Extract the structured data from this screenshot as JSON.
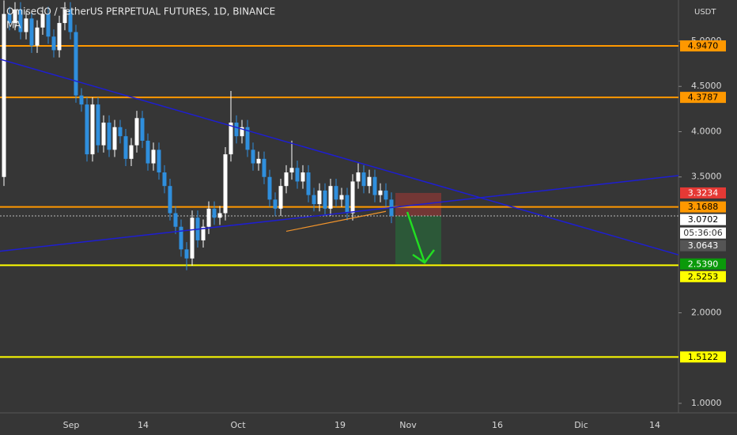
{
  "chart_data": {
    "type": "candlestick",
    "title": "OmiseGO / TetherUS PERPETUAL FUTURES, 1D, BINANCE",
    "unit": "USDT",
    "ylim": [
      0.895,
      5.454
    ],
    "yticks": [
      {
        "value": 1,
        "label": "1.0000"
      },
      {
        "value": 2,
        "label": "2.0000"
      },
      {
        "value": 3.5,
        "label": "3.5000"
      },
      {
        "value": 4,
        "label": "4.0000"
      },
      {
        "value": 4.5,
        "label": "4.5000"
      },
      {
        "value": 5,
        "label": "5.0000"
      }
    ],
    "xtick_labels": [
      "Sep",
      "14",
      "Oct",
      "19",
      "Nov",
      "16",
      "Dic",
      "14"
    ],
    "up_color": "#ffffff",
    "down_color": "#2f8fdd",
    "open": [
      3.5,
      5.3,
      5.2,
      5.35,
      5.1,
      5.25,
      4.95,
      5.15,
      5.3,
      5.05,
      4.9,
      5.2,
      5.35,
      5.1,
      4.4,
      4.3,
      3.75,
      4.3,
      3.85,
      4.1,
      3.8,
      4.05,
      3.95,
      3.7,
      3.85,
      4.15,
      3.9,
      3.65,
      3.8,
      3.55,
      3.4,
      3.1,
      2.95,
      2.7,
      2.6,
      3.05,
      2.8,
      2.95,
      3.15,
      3.05,
      3.1,
      3.75,
      4.1,
      3.95,
      4.05,
      3.8,
      3.65,
      3.7,
      3.5,
      3.25,
      3.15,
      3.4,
      3.55,
      3.6,
      3.45,
      3.55,
      3.3,
      3.2,
      3.35,
      3.15,
      3.4,
      3.25,
      3.3,
      3.1,
      3.45,
      3.55,
      3.4,
      3.5,
      3.3,
      3.35,
      3.25
    ],
    "high": [
      5.45,
      5.38,
      5.43,
      5.43,
      5.33,
      5.33,
      5.23,
      5.38,
      5.38,
      5.13,
      5.28,
      5.43,
      5.43,
      5.18,
      4.48,
      4.38,
      4.38,
      4.38,
      4.18,
      4.18,
      4.13,
      4.13,
      4.03,
      3.93,
      4.23,
      4.23,
      3.98,
      3.88,
      3.88,
      3.63,
      3.48,
      3.18,
      3.03,
      2.78,
      3.13,
      3.13,
      3.03,
      3.23,
      3.23,
      3.18,
      3.83,
      4.45,
      4.18,
      4.13,
      4.13,
      3.88,
      3.78,
      3.78,
      3.58,
      3.33,
      3.48,
      3.63,
      3.9,
      3.68,
      3.63,
      3.63,
      3.38,
      3.43,
      3.43,
      3.48,
      3.48,
      3.38,
      3.38,
      3.53,
      3.65,
      3.63,
      3.58,
      3.58,
      3.43,
      3.43,
      3.33
    ],
    "low": [
      3.4,
      5.12,
      5.12,
      5.02,
      5.02,
      4.87,
      4.87,
      5.07,
      4.97,
      4.82,
      4.82,
      5.12,
      5.02,
      4.32,
      4.22,
      3.67,
      3.67,
      3.77,
      3.77,
      3.72,
      3.72,
      3.87,
      3.62,
      3.62,
      3.77,
      3.82,
      3.57,
      3.57,
      3.47,
      3.32,
      3.02,
      2.87,
      2.62,
      2.47,
      2.52,
      2.72,
      2.72,
      2.87,
      2.97,
      2.97,
      3.02,
      3.67,
      3.87,
      3.87,
      3.72,
      3.57,
      3.57,
      3.42,
      3.17,
      3.07,
      3.07,
      3.32,
      3.47,
      3.37,
      3.37,
      3.22,
      3.12,
      3.12,
      3.07,
      3.07,
      3.17,
      3.17,
      3.02,
      3.02,
      3.37,
      3.32,
      3.32,
      3.22,
      3.22,
      3.17,
      2.99
    ],
    "close": [
      5.3,
      5.2,
      5.35,
      5.1,
      5.25,
      4.95,
      5.15,
      5.3,
      5.05,
      4.9,
      5.2,
      5.35,
      5.1,
      4.4,
      4.3,
      3.75,
      4.3,
      3.85,
      4.1,
      3.8,
      4.05,
      3.95,
      3.7,
      3.85,
      4.15,
      3.9,
      3.65,
      3.8,
      3.55,
      3.4,
      3.1,
      2.95,
      2.7,
      2.6,
      3.05,
      2.8,
      2.95,
      3.15,
      3.05,
      3.1,
      3.75,
      4.1,
      3.95,
      4.05,
      3.8,
      3.65,
      3.7,
      3.5,
      3.25,
      3.15,
      3.4,
      3.55,
      3.6,
      3.45,
      3.55,
      3.3,
      3.2,
      3.35,
      3.15,
      3.4,
      3.25,
      3.3,
      3.1,
      3.45,
      3.55,
      3.4,
      3.5,
      3.3,
      3.35,
      3.25,
      3.07
    ],
    "ma": {
      "name": "MA",
      "color": "#f0932b",
      "start": 2.9,
      "end": 3.12
    },
    "trendlines": [
      {
        "color": "#1e1ed2",
        "start": 4.8,
        "end": 2.64
      },
      {
        "color": "#1e1ed2",
        "start": 2.68,
        "end": 3.515
      }
    ],
    "price_labels": [
      {
        "value": 4.947,
        "label": "4.9470",
        "bg": "#ff9800",
        "fg": "#000000",
        "line": "solid"
      },
      {
        "value": 4.3787,
        "label": "4.3787",
        "bg": "#ff9800",
        "fg": "#000000",
        "line": "solid"
      },
      {
        "value": 3.3234,
        "label": "3.3234",
        "bg": "#e53935",
        "fg": "#ffffff"
      },
      {
        "value": 3.1688,
        "label": "3.1688",
        "bg": "#ff9800",
        "fg": "#000000",
        "line": "solid"
      },
      {
        "value": 3.0702,
        "label": "3.0702",
        "bg": "#ffffff",
        "fg": "#000000",
        "line": "dotted"
      },
      {
        "value": 3.0643,
        "label": "3.0643",
        "bg": "#555555",
        "fg": "#ffffff"
      },
      {
        "value": 2.539,
        "label": "2.5390",
        "bg": "#0a9a0a",
        "fg": "#ffffff"
      },
      {
        "value": 2.5253,
        "label": "2.5253",
        "bg": "#ffff00",
        "fg": "#000000",
        "line": "solid"
      },
      {
        "value": 1.5122,
        "label": "1.5122",
        "bg": "#ffff00",
        "fg": "#000000",
        "line": "solid"
      }
    ],
    "countdown": "05:36:06"
  }
}
